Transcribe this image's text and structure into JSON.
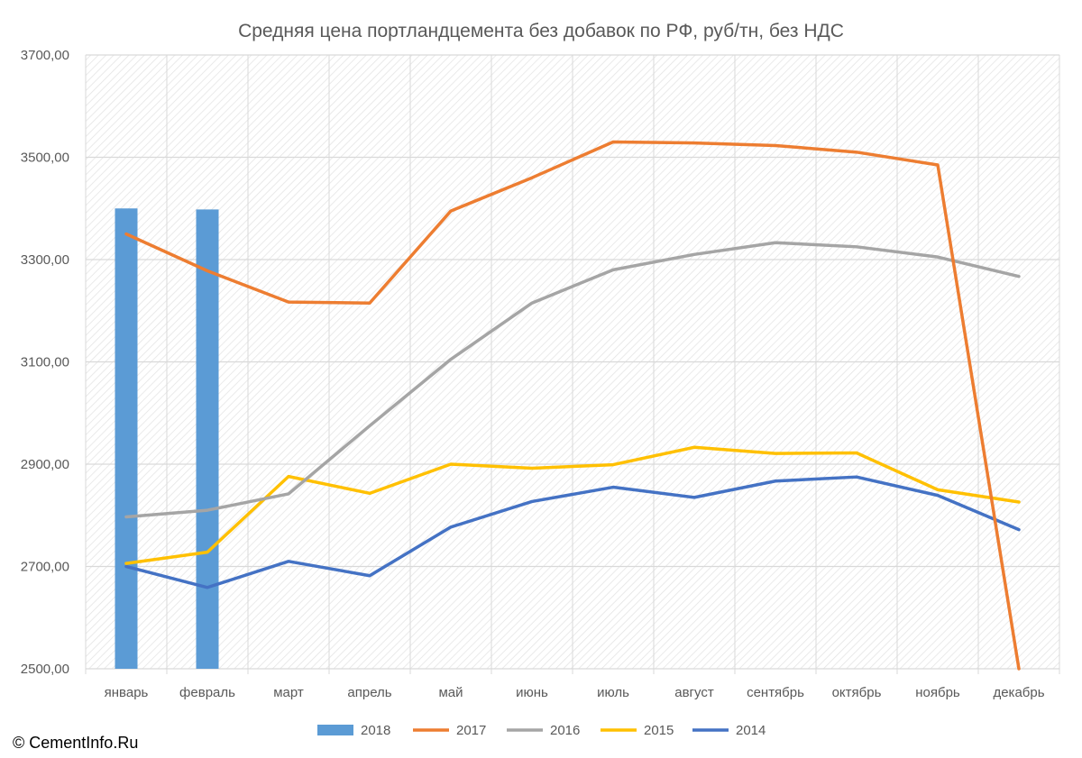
{
  "chart_data": {
    "type": "line",
    "title": "Средняя цена портландцемента без добавок по РФ, руб/тн, без НДС",
    "categories": [
      "январь",
      "февраль",
      "март",
      "апрель",
      "май",
      "июнь",
      "июль",
      "август",
      "сентябрь",
      "октябрь",
      "ноябрь",
      "декабрь"
    ],
    "ylim": [
      2500,
      3700
    ],
    "y_ticks": [
      "2500,00",
      "2700,00",
      "2900,00",
      "3100,00",
      "3300,00",
      "3500,00",
      "3700,00"
    ],
    "grid": true,
    "legend_position": "bottom",
    "series": [
      {
        "name": "2018",
        "type": "bar",
        "color": "#5b9bd5",
        "values": [
          3400,
          3398,
          null,
          null,
          null,
          null,
          null,
          null,
          null,
          null,
          null,
          null
        ]
      },
      {
        "name": "2017",
        "type": "line",
        "color": "#ed7d31",
        "values": [
          3350,
          3278,
          3217,
          3215,
          3395,
          3460,
          3530,
          3528,
          3523,
          3510,
          3485,
          2500
        ]
      },
      {
        "name": "2016",
        "type": "line",
        "color": "#a5a5a5",
        "values": [
          2797,
          2810,
          2842,
          2975,
          3105,
          3215,
          3280,
          3310,
          3333,
          3325,
          3305,
          3267
        ]
      },
      {
        "name": "2015",
        "type": "line",
        "color": "#ffc000",
        "values": [
          2706,
          2728,
          2876,
          2843,
          2900,
          2892,
          2899,
          2933,
          2921,
          2922,
          2850,
          2826
        ]
      },
      {
        "name": "2014",
        "type": "line",
        "color": "#4472c4",
        "values": [
          2700,
          2659,
          2710,
          2682,
          2777,
          2827,
          2855,
          2835,
          2867,
          2875,
          2839,
          2772
        ]
      }
    ]
  },
  "copyright": "© CementInfo.Ru"
}
